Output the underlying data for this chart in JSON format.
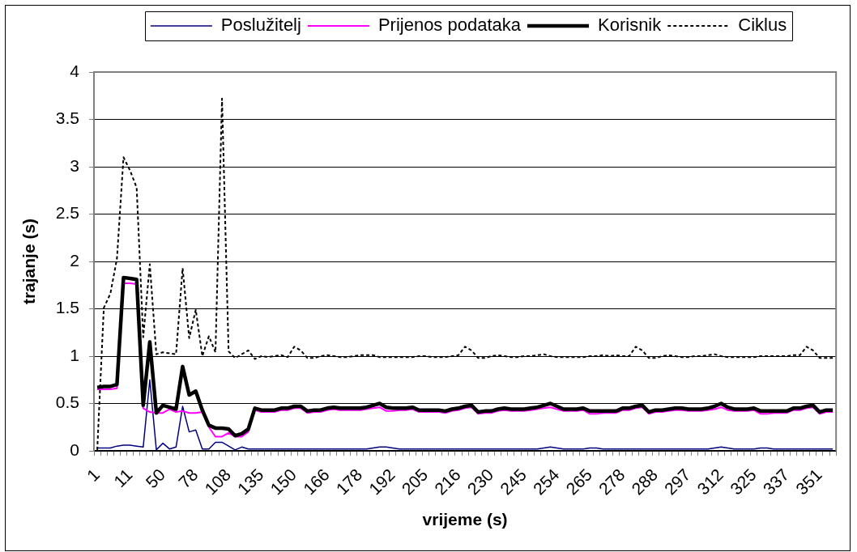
{
  "chart_data": {
    "type": "line",
    "xlabel": "vrijeme (s)",
    "ylabel": "trajanje (s)",
    "categories": [
      "1",
      null,
      null,
      null,
      null,
      "11",
      null,
      null,
      null,
      null,
      "50",
      null,
      null,
      null,
      null,
      "78",
      null,
      null,
      null,
      null,
      "108",
      null,
      null,
      null,
      null,
      "135",
      null,
      null,
      null,
      null,
      "150",
      null,
      null,
      null,
      null,
      "166",
      null,
      null,
      null,
      null,
      "178",
      null,
      null,
      null,
      null,
      "192",
      null,
      null,
      null,
      null,
      "205",
      null,
      null,
      null,
      null,
      "216",
      null,
      null,
      null,
      null,
      "230",
      null,
      null,
      null,
      null,
      "245",
      null,
      null,
      null,
      null,
      "254",
      null,
      null,
      null,
      null,
      "265",
      null,
      null,
      null,
      null,
      "278",
      null,
      null,
      null,
      null,
      "288",
      null,
      null,
      null,
      null,
      "297",
      null,
      null,
      null,
      null,
      "312",
      null,
      null,
      null,
      null,
      "325",
      null,
      null,
      null,
      null,
      "337",
      null,
      null,
      null,
      null,
      "351",
      null,
      null
    ],
    "series": [
      {
        "name": "Poslužitelj",
        "color": "#000080",
        "values": [
          0.03,
          0.03,
          0.03,
          0.05,
          0.06,
          0.06,
          0.05,
          0.04,
          0.75,
          0.01,
          0.08,
          0.02,
          0.04,
          0.47,
          0.2,
          0.22,
          0.02,
          0.02,
          0.09,
          0.09,
          0.05,
          0.01,
          0.04,
          0.02,
          0.02,
          0.02,
          0.02,
          0.02,
          0.02,
          0.02,
          0.02,
          0.02,
          0.02,
          0.02,
          0.02,
          0.02,
          0.02,
          0.02,
          0.02,
          0.02,
          0.02,
          0.02,
          0.03,
          0.04,
          0.04,
          0.03,
          0.02,
          0.02,
          0.02,
          0.02,
          0.02,
          0.02,
          0.02,
          0.02,
          0.02,
          0.02,
          0.02,
          0.02,
          0.02,
          0.02,
          0.02,
          0.02,
          0.02,
          0.02,
          0.02,
          0.02,
          0.02,
          0.02,
          0.03,
          0.04,
          0.03,
          0.02,
          0.02,
          0.02,
          0.02,
          0.03,
          0.03,
          0.02,
          0.02,
          0.02,
          0.02,
          0.02,
          0.02,
          0.02,
          0.02,
          0.02,
          0.02,
          0.02,
          0.02,
          0.02,
          0.02,
          0.02,
          0.02,
          0.02,
          0.03,
          0.04,
          0.03,
          0.02,
          0.02,
          0.02,
          0.02,
          0.03,
          0.03,
          0.02,
          0.02,
          0.02,
          0.02,
          0.02,
          0.02,
          0.02,
          0.02,
          0.02,
          0.02
        ]
      },
      {
        "name": "Prijenos podataka",
        "color": "#ff00ff",
        "values": [
          0.65,
          0.65,
          0.65,
          0.66,
          1.77,
          1.77,
          1.76,
          0.45,
          0.41,
          0.4,
          0.4,
          0.44,
          0.41,
          0.42,
          0.4,
          0.4,
          0.41,
          0.25,
          0.15,
          0.15,
          0.19,
          0.15,
          0.15,
          0.2,
          0.43,
          0.41,
          0.41,
          0.41,
          0.43,
          0.43,
          0.45,
          0.45,
          0.4,
          0.41,
          0.41,
          0.43,
          0.44,
          0.43,
          0.43,
          0.43,
          0.43,
          0.44,
          0.45,
          0.46,
          0.42,
          0.42,
          0.43,
          0.43,
          0.44,
          0.41,
          0.41,
          0.41,
          0.41,
          0.4,
          0.42,
          0.43,
          0.45,
          0.46,
          0.39,
          0.4,
          0.4,
          0.42,
          0.43,
          0.42,
          0.42,
          0.42,
          0.43,
          0.44,
          0.45,
          0.46,
          0.44,
          0.42,
          0.42,
          0.42,
          0.43,
          0.39,
          0.39,
          0.4,
          0.4,
          0.4,
          0.43,
          0.43,
          0.45,
          0.46,
          0.39,
          0.41,
          0.41,
          0.42,
          0.43,
          0.43,
          0.42,
          0.42,
          0.42,
          0.43,
          0.44,
          0.46,
          0.43,
          0.42,
          0.42,
          0.42,
          0.43,
          0.39,
          0.39,
          0.4,
          0.4,
          0.4,
          0.43,
          0.43,
          0.45,
          0.46,
          0.39,
          0.41,
          0.41
        ]
      },
      {
        "name": "Korisnik",
        "color": "#000000",
        "values": [
          0.67,
          0.68,
          0.68,
          0.7,
          1.83,
          1.82,
          1.81,
          0.48,
          1.15,
          0.4,
          0.48,
          0.46,
          0.44,
          0.89,
          0.59,
          0.63,
          0.43,
          0.27,
          0.24,
          0.24,
          0.23,
          0.16,
          0.18,
          0.23,
          0.45,
          0.43,
          0.43,
          0.43,
          0.45,
          0.45,
          0.47,
          0.47,
          0.42,
          0.43,
          0.43,
          0.45,
          0.46,
          0.45,
          0.45,
          0.45,
          0.45,
          0.46,
          0.48,
          0.5,
          0.46,
          0.45,
          0.45,
          0.45,
          0.46,
          0.43,
          0.43,
          0.43,
          0.43,
          0.42,
          0.44,
          0.45,
          0.47,
          0.48,
          0.41,
          0.42,
          0.42,
          0.44,
          0.45,
          0.44,
          0.44,
          0.44,
          0.45,
          0.46,
          0.48,
          0.5,
          0.47,
          0.44,
          0.44,
          0.44,
          0.45,
          0.42,
          0.42,
          0.42,
          0.42,
          0.42,
          0.45,
          0.45,
          0.47,
          0.48,
          0.41,
          0.43,
          0.43,
          0.44,
          0.45,
          0.45,
          0.44,
          0.44,
          0.44,
          0.45,
          0.47,
          0.5,
          0.46,
          0.44,
          0.44,
          0.44,
          0.45,
          0.42,
          0.42,
          0.42,
          0.42,
          0.42,
          0.45,
          0.45,
          0.47,
          0.48,
          0.41,
          0.43,
          0.43
        ]
      },
      {
        "name": "Ciklus",
        "color": "#000000",
        "line_style": "dashed",
        "values": [
          0.01,
          1.51,
          1.66,
          2.03,
          3.1,
          2.96,
          2.78,
          1.2,
          1.97,
          1.02,
          1.04,
          1.03,
          1.02,
          1.93,
          1.19,
          1.49,
          1.0,
          1.21,
          1.04,
          3.72,
          1.05,
          0.98,
          1.02,
          1.06,
          0.97,
          1.0,
          0.99,
          1.0,
          1.01,
          0.99,
          1.1,
          1.06,
          0.98,
          0.98,
          1.0,
          1.01,
          1.0,
          0.99,
          0.99,
          1.0,
          1.01,
          1.01,
          1.01,
          0.99,
          0.99,
          0.99,
          0.99,
          0.99,
          0.99,
          1.0,
          1.0,
          0.99,
          0.99,
          0.99,
          1.0,
          1.01,
          1.1,
          1.06,
          0.98,
          0.98,
          1.0,
          1.01,
          1.0,
          0.99,
          0.99,
          1.0,
          1.0,
          1.01,
          1.02,
          1.0,
          0.99,
          0.99,
          0.99,
          0.99,
          0.99,
          1.0,
          1.0,
          1.01,
          1.0,
          1.01,
          1.0,
          1.0,
          1.1,
          1.06,
          0.98,
          0.98,
          1.0,
          1.01,
          1.0,
          0.99,
          0.99,
          1.0,
          1.0,
          1.01,
          1.02,
          1.0,
          0.99,
          0.99,
          0.99,
          0.99,
          0.99,
          1.0,
          1.0,
          1.0,
          1.0,
          1.0,
          1.01,
          1.01,
          1.1,
          1.06,
          0.98,
          0.98,
          0.98
        ]
      }
    ],
    "ylim": [
      0,
      4
    ],
    "yticks": [
      0,
      0.5,
      1,
      1.5,
      2,
      2.5,
      3,
      3.5,
      4
    ],
    "grid": "y",
    "legend": "top",
    "marker": "none"
  }
}
